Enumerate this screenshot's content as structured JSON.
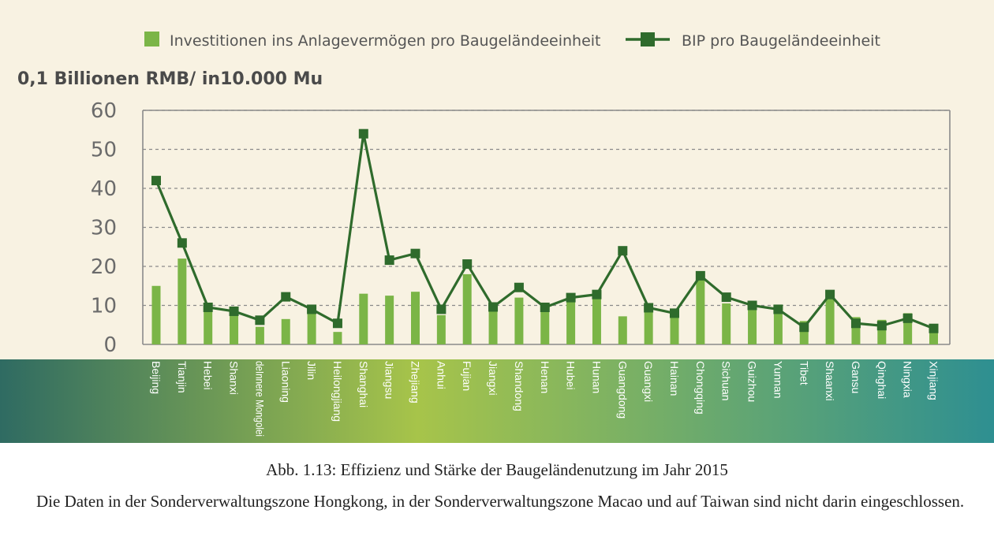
{
  "legend": {
    "bar_label": "Investitionen ins Anlagevermögen pro Baugeländeeinheit",
    "line_label": "BIP pro Baugeländeeinheit"
  },
  "unit_label": "0,1 Billionen RMB/ in10.000 Mu",
  "colors": {
    "background": "#f8f2e2",
    "bar": "#7bb547",
    "line": "#2f6b2c",
    "grid": "#8a8a8a",
    "band_left": "#2f6b62",
    "band_center": "#a7c44a",
    "band_right": "#2e8f91"
  },
  "chart_data": {
    "type": "bar",
    "categories": [
      "Beijing",
      "Tianjin",
      "Hebei",
      "Shanxi",
      "deInnere Mongolei",
      "Liaoning",
      "Jilin",
      "Heilongjiang",
      "Shanghai",
      "Jiangsu",
      "Zhejiang",
      "Anhui",
      "Fujian",
      "Jiangxi",
      "Shandong",
      "Henan",
      "Hubei",
      "Hunan",
      "Guangdong",
      "Guangxi",
      "Hainan",
      "Chongqing",
      "Sichuan",
      "Guizhou",
      "Yunnan",
      "Tibet",
      "Shaanxi",
      "Gansu",
      "Qinghai",
      "Ningxia",
      "Xinjiang"
    ],
    "series": [
      {
        "name": "Investitionen ins Anlagevermögen pro Baugeländeeinheit",
        "type": "bar",
        "values": [
          15,
          22,
          9,
          9,
          4.5,
          6.5,
          10,
          3.2,
          13,
          12.5,
          13.5,
          7.5,
          18,
          8.5,
          12,
          8.5,
          11.5,
          12,
          7.2,
          8.5,
          7,
          17,
          10.5,
          9,
          8.5,
          6,
          12,
          7,
          6.3,
          8,
          3
        ]
      },
      {
        "name": "BIP pro Baugeländeeinheit",
        "type": "line",
        "values": [
          42,
          26,
          9.5,
          8.5,
          6.2,
          12.2,
          9,
          5.4,
          54,
          21.6,
          23.3,
          9,
          20.6,
          9.6,
          14.6,
          9.5,
          12,
          12.8,
          24,
          9.4,
          8,
          17.6,
          12.1,
          10,
          9,
          4.4,
          12.8,
          5.4,
          4.8,
          6.7,
          4.1
        ]
      }
    ],
    "yticks": [
      0,
      10,
      20,
      30,
      40,
      50,
      60
    ],
    "ylim": [
      0,
      60
    ],
    "ylabel": "0,1 Billionen RMB/ in10.000 Mu",
    "xlabel": "",
    "grid": true,
    "legend_position": "top"
  },
  "caption": "Abb. 1.13: Effizienz und Stärke der Baugeländenutzung im Jahr 2015",
  "note": "Die Daten in der Sonderverwaltungszone Hongkong, in der Sonderverwaltungszone Macao und auf Taiwan sind nicht darin eingeschlossen."
}
